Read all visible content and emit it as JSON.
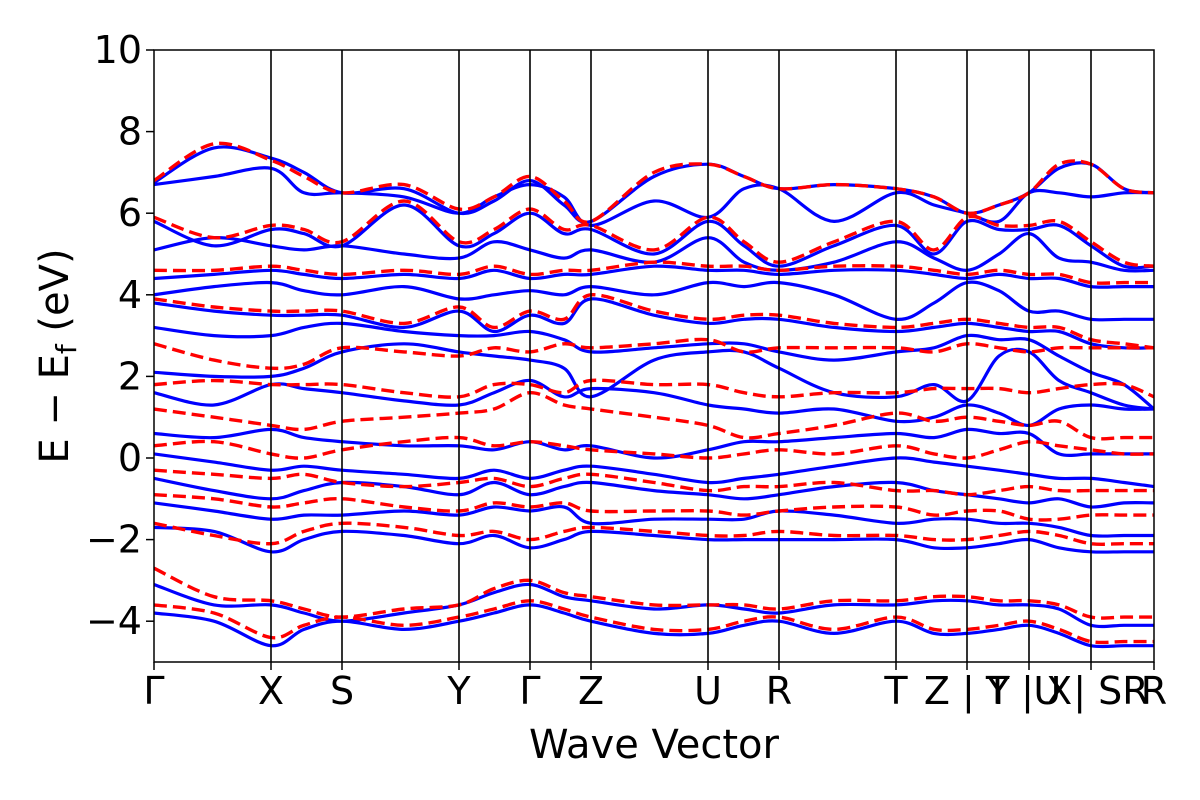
{
  "chart_data": {
    "type": "line",
    "xlabel": "Wave Vector",
    "ylabel": "E − E",
    "ylabel_sub": "f",
    "ylabel_unit": " (eV)",
    "ylim": [
      -5,
      10
    ],
    "xlim": [
      0,
      1
    ],
    "y_ticks": [
      -4,
      -2,
      0,
      2,
      4,
      6,
      8,
      10
    ],
    "y_tick_labels": [
      "−4",
      "−2",
      "0",
      "2",
      "4",
      "6",
      "8",
      "10"
    ],
    "k_points": [
      {
        "label": "Γ",
        "x": 0.0
      },
      {
        "label": "X",
        "x": 0.117
      },
      {
        "label": "S",
        "x": 0.188
      },
      {
        "label": "Y",
        "x": 0.305
      },
      {
        "label": "Γ",
        "x": 0.376
      },
      {
        "label": "Z",
        "x": 0.437
      },
      {
        "label": "U",
        "x": 0.554
      },
      {
        "label": "R",
        "x": 0.625
      },
      {
        "label": "T",
        "x": 0.742
      },
      {
        "label": "Z | Y",
        "x": 0.813
      },
      {
        "label": "T | X",
        "x": 0.875
      },
      {
        "label": "U | SR",
        "x": 0.937
      },
      {
        "label": "R",
        "x": 1.0
      }
    ],
    "grid": false,
    "legend": "none",
    "series": [
      {
        "style": "solid",
        "color": "#0000ff"
      },
      {
        "style": "dashed",
        "color": "#ff0000"
      }
    ],
    "band_samples_x": [
      0,
      0.06,
      0.117,
      0.15,
      0.188,
      0.25,
      0.305,
      0.34,
      0.376,
      0.41,
      0.437,
      0.5,
      0.554,
      0.59,
      0.625,
      0.68,
      0.742,
      0.78,
      0.813,
      0.845,
      0.875,
      0.905,
      0.937,
      0.97,
      1.0
    ],
    "bands_blue": [
      [
        6.75,
        7.6,
        7.35,
        7.0,
        6.5,
        6.6,
        6.0,
        6.3,
        6.8,
        6.2,
        5.8,
        6.9,
        7.2,
        6.9,
        6.6,
        6.7,
        6.6,
        6.4,
        6.0,
        6.2,
        6.5,
        7.1,
        7.2,
        6.6,
        6.5
      ],
      [
        6.7,
        6.9,
        7.1,
        6.5,
        6.5,
        6.4,
        6.0,
        6.4,
        6.7,
        6.4,
        5.7,
        6.3,
        5.9,
        6.6,
        6.6,
        5.8,
        6.5,
        6.2,
        6.0,
        5.8,
        6.5,
        6.5,
        6.4,
        6.5,
        6.5
      ],
      [
        5.8,
        5.2,
        5.6,
        5.5,
        5.2,
        6.2,
        5.2,
        5.5,
        6.0,
        5.5,
        5.6,
        5.0,
        5.8,
        5.2,
        4.7,
        5.2,
        5.7,
        5.0,
        5.8,
        5.6,
        5.6,
        5.7,
        5.2,
        4.7,
        4.7
      ],
      [
        5.1,
        5.4,
        5.2,
        5.1,
        5.2,
        5.0,
        4.9,
        5.3,
        5.1,
        4.9,
        5.1,
        4.8,
        5.4,
        4.8,
        4.6,
        4.8,
        5.3,
        4.9,
        4.6,
        5.0,
        5.5,
        4.9,
        4.8,
        4.6,
        4.6
      ],
      [
        4.4,
        4.5,
        4.6,
        4.5,
        4.4,
        4.5,
        4.4,
        4.6,
        4.4,
        4.5,
        4.5,
        4.7,
        4.6,
        4.6,
        4.5,
        4.6,
        4.6,
        4.5,
        4.4,
        4.5,
        4.4,
        4.4,
        4.2,
        4.2,
        4.2
      ],
      [
        4.0,
        4.2,
        4.3,
        4.1,
        4.0,
        4.2,
        3.9,
        4.0,
        4.1,
        4.0,
        4.2,
        4.0,
        4.3,
        4.2,
        4.3,
        4.0,
        3.4,
        3.8,
        4.3,
        4.1,
        3.6,
        3.6,
        3.4,
        3.4,
        3.4
      ],
      [
        3.8,
        3.6,
        3.5,
        3.5,
        3.5,
        3.2,
        3.6,
        3.1,
        3.5,
        3.3,
        3.9,
        3.5,
        3.3,
        3.4,
        3.4,
        3.2,
        3.1,
        3.2,
        3.3,
        3.2,
        3.1,
        3.1,
        2.8,
        2.7,
        2.7
      ],
      [
        3.2,
        3.0,
        3.0,
        3.2,
        3.3,
        3.1,
        3.0,
        3.0,
        3.1,
        2.9,
        2.6,
        2.7,
        2.8,
        2.8,
        2.6,
        2.4,
        2.6,
        2.7,
        3.0,
        2.9,
        2.9,
        2.5,
        2.1,
        1.8,
        1.2
      ],
      [
        2.1,
        2.0,
        2.0,
        2.2,
        2.6,
        2.8,
        2.6,
        2.5,
        2.4,
        2.2,
        1.5,
        2.4,
        2.6,
        2.6,
        2.2,
        1.6,
        1.5,
        1.8,
        1.4,
        2.5,
        2.6,
        1.9,
        1.6,
        1.3,
        1.2
      ],
      [
        1.6,
        1.3,
        1.8,
        1.7,
        1.6,
        1.4,
        1.3,
        1.6,
        1.9,
        1.5,
        1.7,
        1.6,
        1.3,
        1.2,
        1.1,
        1.2,
        0.9,
        1.0,
        1.3,
        1.1,
        0.8,
        1.2,
        1.3,
        1.2,
        1.2
      ],
      [
        0.6,
        0.5,
        0.7,
        0.5,
        0.4,
        0.3,
        0.3,
        0.2,
        0.4,
        0.2,
        0.3,
        0.0,
        0.2,
        0.4,
        0.4,
        0.5,
        0.6,
        0.5,
        0.7,
        0.6,
        0.6,
        0.1,
        0.1,
        0.1,
        0.1
      ],
      [
        0.1,
        -0.1,
        -0.3,
        -0.2,
        -0.3,
        -0.4,
        -0.5,
        -0.3,
        -0.5,
        -0.3,
        -0.2,
        -0.4,
        -0.6,
        -0.5,
        -0.4,
        -0.2,
        0.0,
        -0.1,
        -0.2,
        -0.3,
        -0.4,
        -0.5,
        -0.5,
        -0.6,
        -0.7
      ],
      [
        -0.5,
        -0.8,
        -1.0,
        -0.8,
        -0.6,
        -0.7,
        -0.9,
        -0.6,
        -0.9,
        -0.7,
        -0.6,
        -0.8,
        -0.9,
        -1.0,
        -0.9,
        -0.7,
        -0.6,
        -0.8,
        -0.9,
        -1.0,
        -1.1,
        -1.0,
        -1.2,
        -1.1,
        -1.1
      ],
      [
        -1.1,
        -1.3,
        -1.5,
        -1.4,
        -1.4,
        -1.3,
        -1.4,
        -1.2,
        -1.3,
        -1.2,
        -1.6,
        -1.5,
        -1.5,
        -1.5,
        -1.3,
        -1.4,
        -1.6,
        -1.5,
        -1.5,
        -1.6,
        -1.6,
        -1.7,
        -1.9,
        -1.9,
        -1.9
      ],
      [
        -1.7,
        -1.8,
        -2.3,
        -2.0,
        -1.8,
        -1.9,
        -2.1,
        -1.9,
        -2.2,
        -2.0,
        -1.8,
        -1.9,
        -2.0,
        -2.0,
        -2.0,
        -2.0,
        -2.0,
        -2.2,
        -2.2,
        -2.1,
        -2.0,
        -2.2,
        -2.3,
        -2.3,
        -2.3
      ],
      [
        -3.1,
        -3.6,
        -3.6,
        -3.8,
        -4.0,
        -3.8,
        -3.6,
        -3.3,
        -3.1,
        -3.4,
        -3.5,
        -3.7,
        -3.6,
        -3.7,
        -3.8,
        -3.6,
        -3.6,
        -3.5,
        -3.5,
        -3.6,
        -3.6,
        -3.7,
        -4.1,
        -4.1,
        -4.1
      ],
      [
        -3.8,
        -4.0,
        -4.6,
        -4.2,
        -4.0,
        -4.2,
        -4.0,
        -3.8,
        -3.6,
        -3.8,
        -4.0,
        -4.3,
        -4.3,
        -4.1,
        -4.0,
        -4.3,
        -4.0,
        -4.3,
        -4.3,
        -4.2,
        -4.1,
        -4.3,
        -4.6,
        -4.6,
        -4.6
      ]
    ],
    "bands_red": [
      [
        6.8,
        7.7,
        7.3,
        6.9,
        6.5,
        6.7,
        6.1,
        6.4,
        6.9,
        6.3,
        5.8,
        7.0,
        7.2,
        6.9,
        6.6,
        6.7,
        6.6,
        6.4,
        6.0,
        6.2,
        6.5,
        7.2,
        7.2,
        6.6,
        6.5
      ],
      [
        5.9,
        5.4,
        5.7,
        5.6,
        5.3,
        6.3,
        5.3,
        5.6,
        6.1,
        5.6,
        5.7,
        5.1,
        5.9,
        5.3,
        4.8,
        5.3,
        5.8,
        5.1,
        5.9,
        5.7,
        5.7,
        5.8,
        5.3,
        4.8,
        4.7
      ],
      [
        4.6,
        4.6,
        4.7,
        4.6,
        4.5,
        4.6,
        4.5,
        4.7,
        4.5,
        4.6,
        4.6,
        4.8,
        4.7,
        4.7,
        4.6,
        4.7,
        4.7,
        4.6,
        4.5,
        4.6,
        4.5,
        4.5,
        4.3,
        4.3,
        4.3
      ],
      [
        3.9,
        3.7,
        3.6,
        3.6,
        3.6,
        3.3,
        3.7,
        3.2,
        3.6,
        3.4,
        4.0,
        3.6,
        3.4,
        3.5,
        3.5,
        3.3,
        3.2,
        3.3,
        3.4,
        3.3,
        3.2,
        3.2,
        2.9,
        2.8,
        2.7
      ],
      [
        2.8,
        2.4,
        2.2,
        2.3,
        2.7,
        2.6,
        2.5,
        2.7,
        2.6,
        2.8,
        2.7,
        2.8,
        2.9,
        2.6,
        2.7,
        2.7,
        2.7,
        2.6,
        2.8,
        2.7,
        2.6,
        2.7,
        2.7,
        2.7,
        2.7
      ],
      [
        1.8,
        1.9,
        1.8,
        1.8,
        1.8,
        1.6,
        1.5,
        1.8,
        1.8,
        1.6,
        1.9,
        1.8,
        1.8,
        1.6,
        1.5,
        1.6,
        1.6,
        1.7,
        1.7,
        1.7,
        1.6,
        1.7,
        1.8,
        1.8,
        1.5
      ],
      [
        1.2,
        1.0,
        0.8,
        0.7,
        0.9,
        1.0,
        1.1,
        1.2,
        1.6,
        1.3,
        1.2,
        1.0,
        0.8,
        0.5,
        0.6,
        0.8,
        1.1,
        0.9,
        1.0,
        0.9,
        0.8,
        0.9,
        0.5,
        0.5,
        0.5
      ],
      [
        0.3,
        0.4,
        0.1,
        0.0,
        0.2,
        0.4,
        0.5,
        0.3,
        0.4,
        0.3,
        0.2,
        0.1,
        0.0,
        0.1,
        0.2,
        0.1,
        0.3,
        0.1,
        0.0,
        0.2,
        0.4,
        0.3,
        0.2,
        0.1,
        0.1
      ],
      [
        -0.3,
        -0.4,
        -0.5,
        -0.4,
        -0.6,
        -0.7,
        -0.6,
        -0.5,
        -0.7,
        -0.5,
        -0.4,
        -0.6,
        -0.8,
        -0.7,
        -0.7,
        -0.6,
        -0.8,
        -0.8,
        -0.9,
        -0.8,
        -0.7,
        -0.8,
        -0.8,
        -0.8,
        -0.8
      ],
      [
        -0.9,
        -1.0,
        -1.2,
        -1.1,
        -1.0,
        -1.2,
        -1.3,
        -1.1,
        -1.2,
        -1.1,
        -1.3,
        -1.3,
        -1.3,
        -1.4,
        -1.3,
        -1.2,
        -1.2,
        -1.4,
        -1.3,
        -1.3,
        -1.5,
        -1.5,
        -1.4,
        -1.4,
        -1.4
      ],
      [
        -1.6,
        -1.9,
        -2.1,
        -1.8,
        -1.6,
        -1.7,
        -1.9,
        -1.8,
        -2.0,
        -1.8,
        -1.7,
        -1.8,
        -1.9,
        -1.9,
        -1.8,
        -1.9,
        -1.9,
        -2.0,
        -2.0,
        -1.9,
        -1.8,
        -1.9,
        -2.1,
        -2.1,
        -2.1
      ],
      [
        -2.7,
        -3.4,
        -3.5,
        -3.7,
        -3.9,
        -3.7,
        -3.6,
        -3.2,
        -3.0,
        -3.3,
        -3.4,
        -3.6,
        -3.6,
        -3.6,
        -3.7,
        -3.5,
        -3.5,
        -3.4,
        -3.4,
        -3.5,
        -3.5,
        -3.6,
        -3.9,
        -3.9,
        -3.9
      ],
      [
        -3.6,
        -3.8,
        -4.4,
        -4.1,
        -3.9,
        -4.1,
        -3.9,
        -3.7,
        -3.5,
        -3.7,
        -3.9,
        -4.2,
        -4.2,
        -4.0,
        -3.9,
        -4.2,
        -3.9,
        -4.2,
        -4.2,
        -4.1,
        -4.0,
        -4.2,
        -4.5,
        -4.5,
        -4.5
      ]
    ]
  }
}
